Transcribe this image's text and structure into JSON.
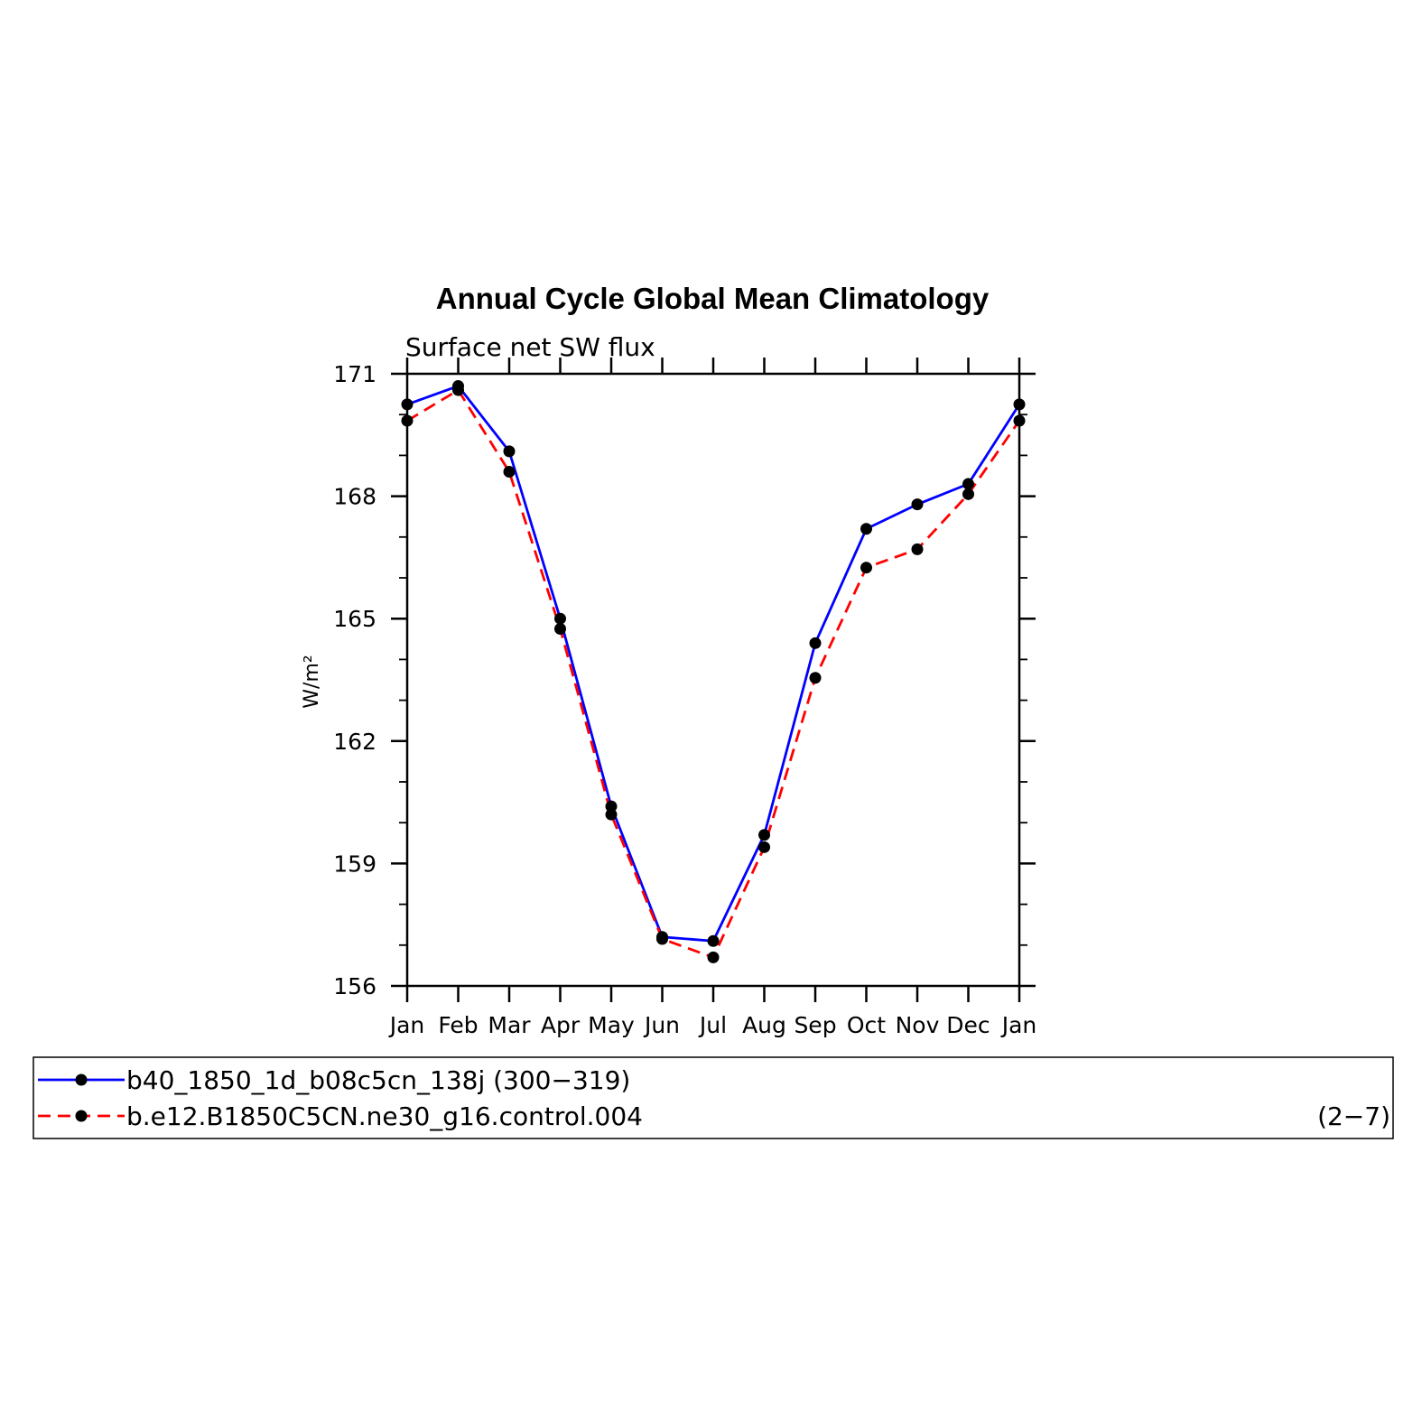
{
  "chart_data": {
    "type": "line",
    "title": "Annual Cycle Global Mean Climatology",
    "subtitle": "Surface net SW flux",
    "ylabel": "W/m²",
    "xlabel": "",
    "categories": [
      "Jan",
      "Feb",
      "Mar",
      "Apr",
      "May",
      "Jun",
      "Jul",
      "Aug",
      "Sep",
      "Oct",
      "Nov",
      "Dec",
      "Jan"
    ],
    "ylim": [
      156,
      171
    ],
    "yticks": [
      156,
      159,
      162,
      165,
      168,
      171
    ],
    "grid": false,
    "legend_position": "bottom",
    "series": [
      {
        "name": "b40_1850_1d_b08c5cn_138j (300−319)",
        "color": "#0000ff",
        "style": "solid",
        "values": [
          170.25,
          170.7,
          169.1,
          165.0,
          160.4,
          157.2,
          157.1,
          159.7,
          164.4,
          167.2,
          167.8,
          168.3,
          170.25
        ]
      },
      {
        "name": "b.e12.B1850C5CN.ne30_g16.control.004",
        "color": "#ff0000",
        "style": "dashed",
        "values": [
          169.85,
          170.6,
          168.6,
          164.75,
          160.2,
          157.15,
          156.7,
          159.4,
          163.55,
          166.25,
          166.7,
          168.05,
          169.85
        ]
      }
    ],
    "annotation": "(2−7)"
  }
}
